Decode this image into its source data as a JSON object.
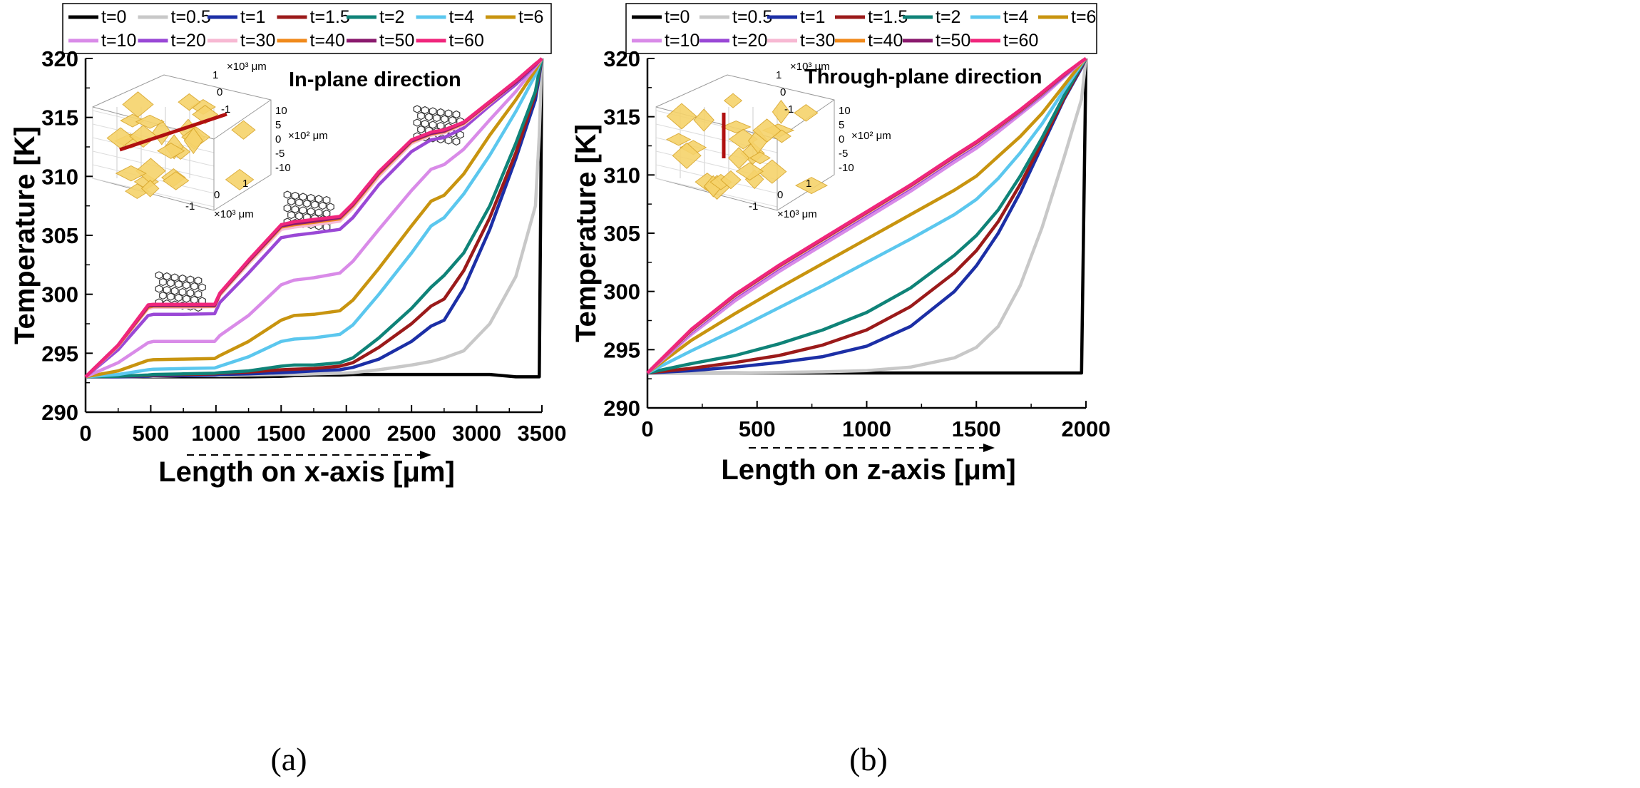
{
  "chart_data": [
    {
      "type": "line",
      "panel_label": "(a)",
      "annotation": "In-plane direction",
      "xlabel": "Length on x-axis [μm]",
      "ylabel": "Temperature [K]",
      "xlim": [
        0,
        3500
      ],
      "ylim": [
        290,
        320
      ],
      "xticks": [
        "0",
        "500",
        "1000",
        "1500",
        "2000",
        "2500",
        "3000",
        "3500"
      ],
      "yticks": [
        "290",
        "295",
        "300",
        "305",
        "310",
        "315",
        "320"
      ],
      "legend_position": "top",
      "x": [
        0,
        250,
        480,
        520,
        750,
        990,
        1030,
        1250,
        1500,
        1600,
        1750,
        1950,
        2050,
        2250,
        2500,
        2650,
        2750,
        2900,
        3100,
        3300,
        3450,
        3480,
        3500
      ],
      "series": [
        {
          "name": "t=0",
          "color": "#000000",
          "values": [
            293,
            293,
            293,
            293,
            293,
            293,
            293,
            293,
            293.05,
            293.1,
            293.15,
            293.15,
            293.2,
            293.2,
            293.2,
            293.2,
            293.2,
            293.2,
            293.2,
            293,
            293,
            293,
            320
          ]
        },
        {
          "name": "t=0.5",
          "color": "#c8c8c8",
          "values": [
            293,
            293,
            293.05,
            293.05,
            293.1,
            293.1,
            293.1,
            293.15,
            293.2,
            293.2,
            293.25,
            293.3,
            293.35,
            293.6,
            294,
            294.3,
            294.6,
            295.2,
            297.5,
            301.5,
            307.5,
            313.5,
            320
          ]
        },
        {
          "name": "t=1",
          "color": "#1c2fa6",
          "values": [
            293,
            293,
            293.05,
            293.1,
            293.1,
            293.15,
            293.2,
            293.25,
            293.35,
            293.4,
            293.5,
            293.6,
            293.8,
            294.5,
            296,
            297.3,
            297.8,
            300.5,
            305.5,
            311.5,
            316.5,
            318.5,
            320
          ]
        },
        {
          "name": "t=1.5",
          "color": "#9b1a1a",
          "values": [
            293,
            293.05,
            293.1,
            293.15,
            293.2,
            293.25,
            293.3,
            293.4,
            293.6,
            293.65,
            293.7,
            293.9,
            294.2,
            295.5,
            297.5,
            299,
            299.6,
            302,
            306.5,
            312,
            317,
            318.8,
            320
          ]
        },
        {
          "name": "t=2",
          "color": "#0f8378",
          "values": [
            293,
            293.05,
            293.15,
            293.2,
            293.25,
            293.3,
            293.35,
            293.5,
            293.9,
            294,
            294,
            294.2,
            294.6,
            296.3,
            298.8,
            300.6,
            301.6,
            303.5,
            307.5,
            312.8,
            317.2,
            319,
            320
          ]
        },
        {
          "name": "t=4",
          "color": "#5bc7ee",
          "values": [
            293,
            293.2,
            293.6,
            293.65,
            293.7,
            293.75,
            293.9,
            294.7,
            296,
            296.2,
            296.3,
            296.6,
            297.4,
            300,
            303.5,
            305.8,
            306.5,
            308.5,
            311.8,
            315.5,
            318.6,
            319.5,
            320
          ]
        },
        {
          "name": "t=6",
          "color": "#c8940f",
          "values": [
            293,
            293.5,
            294.4,
            294.45,
            294.5,
            294.55,
            294.8,
            296,
            297.8,
            298.2,
            298.3,
            298.6,
            299.5,
            302.2,
            305.8,
            307.9,
            308.4,
            310.2,
            313.5,
            316.5,
            319,
            319.6,
            320
          ]
        },
        {
          "name": "t=10",
          "color": "#d98be8",
          "values": [
            293,
            294.2,
            295.9,
            296,
            296,
            296,
            296.5,
            298.2,
            300.8,
            301.2,
            301.4,
            301.8,
            302.8,
            305.5,
            308.8,
            310.6,
            311,
            312.3,
            314.8,
            317.2,
            319.3,
            319.7,
            320
          ]
        },
        {
          "name": "t=20",
          "color": "#9a48d6",
          "values": [
            293,
            295.3,
            298.2,
            298.3,
            298.3,
            298.35,
            299.3,
            301.8,
            304.8,
            305,
            305.2,
            305.5,
            306.5,
            309.3,
            312.1,
            313.1,
            313.3,
            314.1,
            316,
            317.8,
            319.4,
            319.8,
            320
          ]
        },
        {
          "name": "t=30",
          "color": "#f7b9d3",
          "values": [
            293,
            295.6,
            298.8,
            298.9,
            298.9,
            298.95,
            299.9,
            302.6,
            305.5,
            305.7,
            305.9,
            306.2,
            307.3,
            310,
            312.8,
            313.5,
            313.7,
            314.4,
            316.2,
            318,
            319.5,
            319.8,
            320
          ]
        },
        {
          "name": "t=40",
          "color": "#f08a1c",
          "values": [
            293,
            295.65,
            298.9,
            299,
            299,
            299,
            300,
            302.75,
            305.7,
            305.9,
            306.1,
            306.4,
            307.5,
            310.2,
            312.95,
            313.6,
            313.8,
            314.5,
            316.25,
            318,
            319.5,
            319.8,
            320
          ]
        },
        {
          "name": "t=50",
          "color": "#8a1a6e",
          "values": [
            293,
            295.7,
            299,
            299.05,
            299.05,
            299.05,
            300.05,
            302.8,
            305.8,
            306,
            306.2,
            306.5,
            307.6,
            310.3,
            313,
            313.65,
            313.85,
            314.55,
            316.3,
            318,
            319.5,
            319.8,
            320
          ]
        },
        {
          "name": "t=60",
          "color": "#f0267c",
          "values": [
            293,
            295.7,
            299.1,
            299.15,
            299.15,
            299.15,
            300.1,
            302.9,
            305.9,
            306.15,
            306.35,
            306.6,
            307.7,
            310.4,
            313.1,
            313.75,
            313.95,
            314.6,
            316.35,
            318.1,
            319.55,
            319.8,
            320
          ]
        }
      ]
    },
    {
      "type": "line",
      "panel_label": "(b)",
      "annotation": "Through-plane direction",
      "xlabel": "Length on z-axis [μm]",
      "ylabel": "Temperature [K]",
      "xlim": [
        0,
        2000
      ],
      "ylim": [
        290,
        320
      ],
      "xticks": [
        "0",
        "500",
        "1000",
        "1500",
        "2000"
      ],
      "yticks": [
        "290",
        "295",
        "300",
        "305",
        "310",
        "315",
        "320"
      ],
      "legend_position": "top",
      "x": [
        0,
        200,
        400,
        600,
        800,
        1000,
        1200,
        1400,
        1500,
        1600,
        1700,
        1800,
        1900,
        1980,
        2000
      ],
      "series": [
        {
          "name": "t=0",
          "color": "#000000",
          "values": [
            293,
            293,
            293,
            293,
            293,
            293,
            293,
            293,
            293,
            293,
            293,
            293,
            293,
            293,
            320
          ]
        },
        {
          "name": "t=0.5",
          "color": "#c8c8c8",
          "values": [
            293,
            293,
            293,
            293.05,
            293.1,
            293.2,
            293.5,
            294.3,
            295.2,
            297,
            300.5,
            305.5,
            311.5,
            316.5,
            320
          ]
        },
        {
          "name": "t=1",
          "color": "#1c2fa6",
          "values": [
            293,
            293.2,
            293.5,
            293.9,
            294.4,
            295.3,
            297,
            300,
            302.2,
            305,
            308.5,
            312.5,
            316.5,
            319.2,
            320
          ]
        },
        {
          "name": "t=1.5",
          "color": "#9b1a1a",
          "values": [
            293,
            293.4,
            293.9,
            294.5,
            295.4,
            296.7,
            298.7,
            301.6,
            303.5,
            306,
            309.2,
            312.8,
            316.6,
            319.3,
            320
          ]
        },
        {
          "name": "t=2",
          "color": "#0f8378",
          "values": [
            293,
            293.8,
            294.5,
            295.5,
            296.7,
            298.2,
            300.3,
            303.1,
            304.8,
            307,
            309.9,
            313.2,
            316.8,
            319.4,
            320
          ]
        },
        {
          "name": "t=4",
          "color": "#5bc7ee",
          "values": [
            293,
            294.9,
            296.7,
            298.6,
            300.5,
            302.5,
            304.5,
            306.6,
            307.9,
            309.7,
            311.9,
            314.4,
            317.3,
            319.5,
            320
          ]
        },
        {
          "name": "t=6",
          "color": "#c8940f",
          "values": [
            293,
            295.8,
            298.1,
            300.3,
            302.4,
            304.5,
            306.6,
            308.7,
            309.9,
            311.6,
            313.3,
            315.3,
            317.7,
            319.6,
            320
          ]
        },
        {
          "name": "t=10",
          "color": "#d98be8",
          "values": [
            293,
            296.3,
            299.2,
            301.7,
            304,
            306.3,
            308.6,
            311.1,
            312.3,
            313.7,
            315.2,
            316.7,
            318.4,
            319.7,
            320
          ]
        },
        {
          "name": "t=20",
          "color": "#9a48d6",
          "values": [
            293,
            296.5,
            299.5,
            302,
            304.3,
            306.6,
            308.9,
            311.4,
            312.6,
            314,
            315.4,
            316.9,
            318.5,
            319.7,
            320
          ]
        },
        {
          "name": "t=30",
          "color": "#f7b9d3",
          "values": [
            293,
            296.6,
            299.6,
            302.1,
            304.4,
            306.7,
            309,
            311.5,
            312.7,
            314.1,
            315.5,
            317,
            318.6,
            319.7,
            320
          ]
        },
        {
          "name": "t=40",
          "color": "#f08a1c",
          "values": [
            293,
            296.65,
            299.65,
            302.15,
            304.45,
            306.75,
            309.05,
            311.55,
            312.75,
            314.1,
            315.5,
            317,
            318.6,
            319.75,
            320
          ]
        },
        {
          "name": "t=50",
          "color": "#8a1a6e",
          "values": [
            293,
            296.7,
            299.7,
            302.2,
            304.5,
            306.8,
            309.1,
            311.6,
            312.8,
            314.15,
            315.55,
            317.05,
            318.6,
            319.75,
            320
          ]
        },
        {
          "name": "t=60",
          "color": "#f0267c",
          "values": [
            293,
            296.75,
            299.75,
            302.25,
            304.55,
            306.85,
            309.15,
            311.65,
            312.85,
            314.2,
            315.6,
            317.1,
            318.65,
            319.75,
            320
          ]
        }
      ]
    }
  ],
  "insets": [
    {
      "top_axis_ticks": [
        "1",
        "0",
        "-1"
      ],
      "top_axis_unit": "×10³ μm",
      "right_axis_ticks": [
        "10",
        "5",
        "0",
        "-5",
        "-10"
      ],
      "right_axis_unit": "×10² μm",
      "bottom_axis_ticks": [
        "1",
        "0",
        "-1"
      ],
      "bottom_axis_unit": "×10³ μm"
    },
    {
      "top_axis_ticks": [
        "1",
        "0",
        "-1"
      ],
      "top_axis_unit": "×10³ μm",
      "right_axis_ticks": [
        "10",
        "5",
        "0",
        "-5",
        "-10"
      ],
      "right_axis_unit": "×10² μm",
      "bottom_axis_ticks": [
        "1",
        "0",
        "-1"
      ],
      "bottom_axis_unit": "×10³ μm"
    }
  ]
}
